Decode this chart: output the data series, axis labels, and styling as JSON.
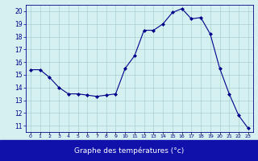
{
  "hours": [
    0,
    1,
    2,
    3,
    4,
    5,
    6,
    7,
    8,
    9,
    10,
    11,
    12,
    13,
    14,
    15,
    16,
    17,
    18,
    19,
    20,
    21,
    22,
    23
  ],
  "temperatures": [
    15.4,
    15.4,
    14.8,
    14.0,
    13.5,
    13.5,
    13.4,
    13.3,
    13.4,
    13.5,
    15.5,
    16.5,
    18.5,
    18.5,
    19.0,
    19.9,
    20.2,
    19.4,
    19.5,
    18.2,
    15.5,
    13.5,
    11.8,
    10.8
  ],
  "xlabel": "Graphe des températures (°c)",
  "ylim": [
    10.5,
    20.5
  ],
  "xlim": [
    -0.5,
    23.5
  ],
  "yticks": [
    11,
    12,
    13,
    14,
    15,
    16,
    17,
    18,
    19,
    20
  ],
  "xtick_labels": [
    "0",
    "1",
    "2",
    "3",
    "4",
    "5",
    "6",
    "7",
    "8",
    "9",
    "10",
    "11",
    "12",
    "13",
    "14",
    "15",
    "16",
    "17",
    "18",
    "19",
    "20",
    "21",
    "22",
    "23"
  ],
  "line_color": "#00008B",
  "marker_color": "#00008B",
  "bg_color": "#d4f0f0",
  "grid_color": "#aacfcf",
  "axis_color": "#00008B",
  "xlabel_bg": "#1010aa",
  "xlabel_fg": "#ffffff"
}
